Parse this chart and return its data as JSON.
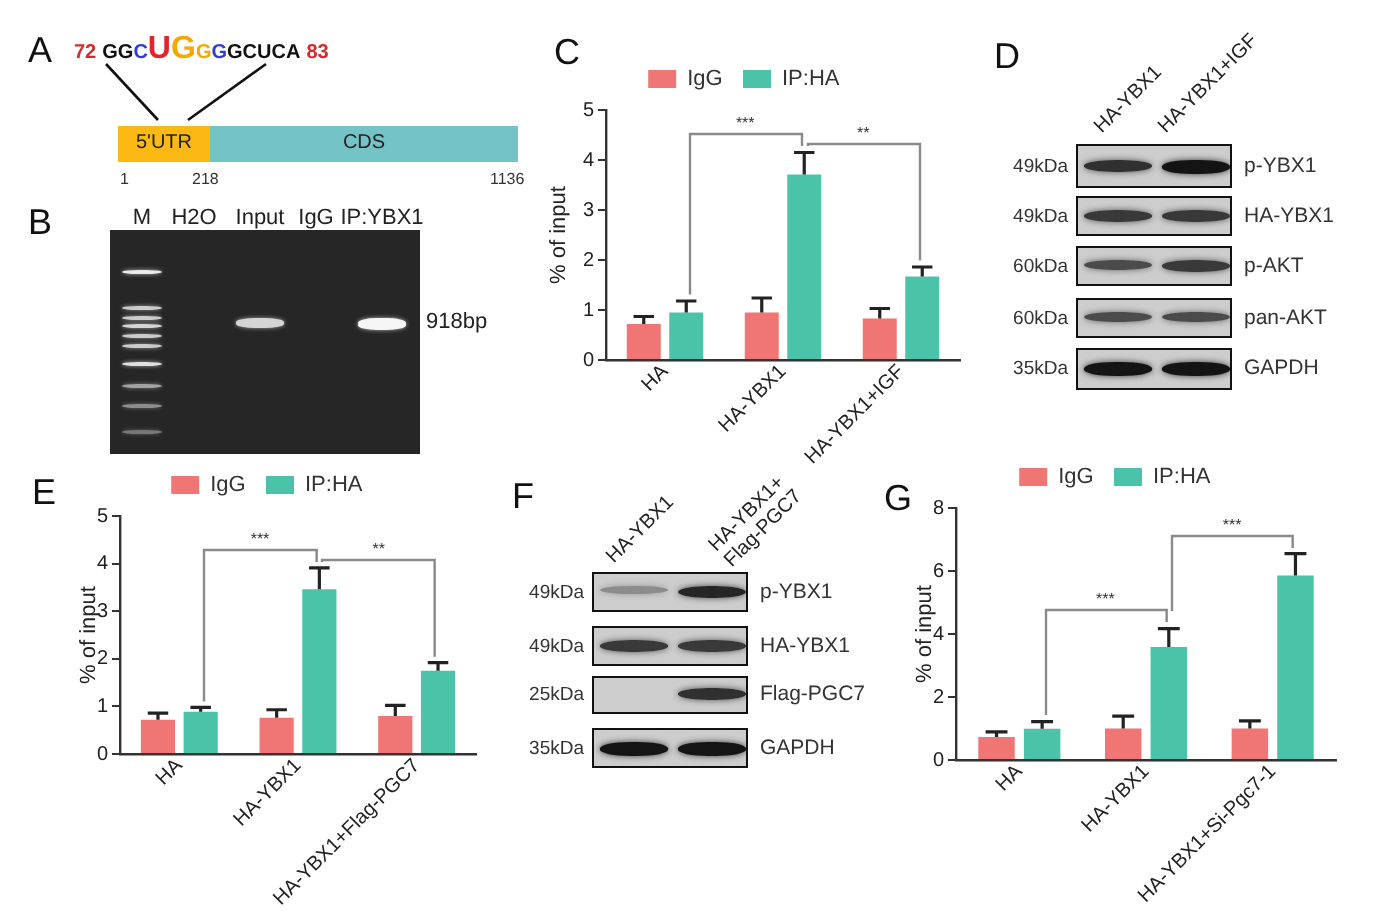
{
  "chart_data": [
    {
      "type": "other",
      "title": "A",
      "annotations": [
        "72",
        "GGCUGGGGCUCA",
        "83",
        "5'UTR",
        "CDS",
        "1",
        "218",
        "1136"
      ]
    },
    {
      "type": "other",
      "title": "B",
      "categories": [
        "M",
        "H2O",
        "Input",
        "IgG",
        "IP:YBX1"
      ],
      "annotations": [
        "918bp"
      ]
    },
    {
      "type": "bar",
      "title": "C",
      "categories": [
        "HA",
        "HA-YBX1",
        "HA-YBX1+IGF"
      ],
      "series": [
        {
          "name": "IgG",
          "color": "#f07575",
          "values": [
            0.72,
            0.95,
            0.83
          ],
          "errors": [
            [
              0.72,
              0.87
            ],
            [
              0.95,
              1.24
            ],
            [
              0.83,
              1.03
            ]
          ]
        },
        {
          "name": "IP:HA",
          "color": "#4bc3a9",
          "values": [
            0.95,
            3.71,
            1.67
          ],
          "errors": [
            [
              0.95,
              1.18
            ],
            [
              3.71,
              4.15
            ],
            [
              1.67,
              1.86
            ]
          ]
        }
      ],
      "ylabel": "% of input",
      "ylim": [
        0,
        5
      ],
      "yticks": [
        0,
        1,
        2,
        3,
        4,
        5
      ],
      "legend": "top",
      "annotations": [
        "***",
        "**"
      ]
    },
    {
      "type": "other",
      "title": "D",
      "categories": [
        "HA-YBX1",
        "HA-YBX1+IGF"
      ],
      "y_categories": [
        "49kDa",
        "49kDa",
        "60kDa",
        "60kDa",
        "35kDa"
      ],
      "y2_categories": [
        "p-YBX1",
        "HA-YBX1",
        "p-AKT",
        "pan-AKT",
        "GAPDH"
      ]
    },
    {
      "type": "bar",
      "title": "E",
      "categories": [
        "HA",
        "HA-YBX1",
        "HA-YBX1+Flag-PGC7"
      ],
      "series": [
        {
          "name": "IgG",
          "color": "#f07575",
          "values": [
            0.72,
            0.76,
            0.8
          ],
          "errors": [
            [
              0.72,
              0.86
            ],
            [
              0.76,
              0.93
            ],
            [
              0.8,
              1.02
            ]
          ]
        },
        {
          "name": "IP:HA",
          "color": "#4bc3a9",
          "values": [
            0.89,
            3.46,
            1.75
          ],
          "errors": [
            [
              0.89,
              0.98
            ],
            [
              3.46,
              3.91
            ],
            [
              1.75,
              1.92
            ]
          ]
        }
      ],
      "ylabel": "% of input",
      "ylim": [
        0,
        5
      ],
      "yticks": [
        0,
        1,
        2,
        3,
        4,
        5
      ],
      "legend": "top",
      "annotations": [
        "***",
        "**"
      ]
    },
    {
      "type": "other",
      "title": "F",
      "categories": [
        "HA-YBX1",
        "HA-YBX1+\nFlag-PGC7"
      ],
      "y_categories": [
        "49kDa",
        "49kDa",
        "25kDa",
        "35kDa"
      ],
      "y2_categories": [
        "p-YBX1",
        "HA-YBX1",
        "Flag-PGC7",
        "GAPDH"
      ]
    },
    {
      "type": "bar",
      "title": "G",
      "categories": [
        "HA",
        "HA-YBX1",
        "HA-YBX1+Si-Pgc7-1"
      ],
      "series": [
        {
          "name": "IgG",
          "color": "#f07575",
          "values": [
            0.73,
            1.0,
            1.0
          ],
          "errors": [
            [
              0.73,
              0.89
            ],
            [
              1.0,
              1.39
            ],
            [
              1.0,
              1.24
            ]
          ]
        },
        {
          "name": "IP:HA",
          "color": "#4bc3a9",
          "values": [
            0.99,
            3.59,
            5.86
          ],
          "errors": [
            [
              0.99,
              1.22
            ],
            [
              3.59,
              4.17
            ],
            [
              5.86,
              6.55
            ]
          ]
        }
      ],
      "ylabel": "% of input",
      "ylim": [
        0,
        8
      ],
      "yticks": [
        0,
        2,
        4,
        6,
        8
      ],
      "legend": "top",
      "annotations": [
        "***",
        "***"
      ]
    }
  ]
}
